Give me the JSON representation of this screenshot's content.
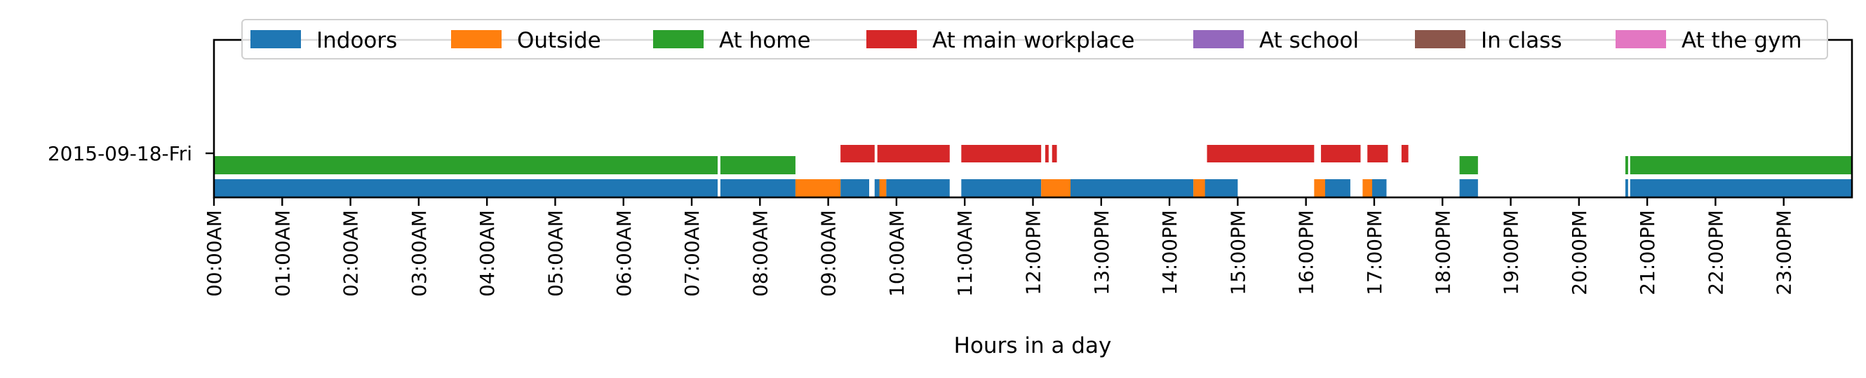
{
  "chart_data": {
    "type": "timeline",
    "xlabel": "Hours in a day",
    "xlim": [
      0,
      24
    ],
    "x_tick_labels": [
      "00:00AM",
      "01:00AM",
      "02:00AM",
      "03:00AM",
      "04:00AM",
      "05:00AM",
      "06:00AM",
      "07:00AM",
      "08:00AM",
      "09:00AM",
      "10:00AM",
      "11:00AM",
      "12:00PM",
      "13:00PM",
      "14:00PM",
      "15:00PM",
      "16:00PM",
      "17:00PM",
      "18:00PM",
      "19:00PM",
      "20:00PM",
      "21:00PM",
      "22:00PM",
      "23:00PM"
    ],
    "y_categories": [
      "2015-09-18-Fri"
    ],
    "legend_position": "top",
    "series": [
      {
        "name": "Indoors",
        "color": "#1f77b4",
        "lane": 0,
        "intervals": [
          [
            0,
            7.38
          ],
          [
            7.42,
            8.52
          ],
          [
            9.18,
            9.6
          ],
          [
            9.68,
            9.8
          ],
          [
            9.85,
            10.78
          ],
          [
            10.95,
            12.12
          ],
          [
            12.52,
            14.35
          ],
          [
            14.5,
            15.0
          ],
          [
            16.22,
            16.65
          ],
          [
            16.9,
            17.18
          ],
          [
            18.25,
            18.52
          ],
          [
            20.68,
            20.72
          ],
          [
            20.75,
            24
          ]
        ]
      },
      {
        "name": "Outside",
        "color": "#ff7f0e",
        "lane": 0,
        "intervals": [
          [
            8.52,
            9.18
          ],
          [
            9.75,
            9.85
          ],
          [
            12.12,
            12.55
          ],
          [
            14.35,
            14.52
          ],
          [
            16.12,
            16.28
          ],
          [
            16.83,
            16.97
          ]
        ]
      },
      {
        "name": "At home",
        "color": "#2ca02c",
        "lane": 1,
        "intervals": [
          [
            0,
            7.38
          ],
          [
            7.42,
            8.52
          ],
          [
            18.25,
            18.52
          ],
          [
            20.68,
            20.72
          ],
          [
            20.75,
            24
          ]
        ]
      },
      {
        "name": "At main workplace",
        "color": "#d62728",
        "lane": 2,
        "intervals": [
          [
            9.18,
            9.68
          ],
          [
            9.72,
            10.78
          ],
          [
            10.95,
            12.12
          ],
          [
            12.18,
            12.23
          ],
          [
            12.28,
            12.35
          ],
          [
            14.55,
            16.12
          ],
          [
            16.22,
            16.8
          ],
          [
            16.9,
            17.2
          ],
          [
            17.4,
            17.5
          ]
        ]
      },
      {
        "name": "At school",
        "color": "#9467bd",
        "lane": 2,
        "intervals": []
      },
      {
        "name": "In class",
        "color": "#8c564b",
        "lane": 2,
        "intervals": []
      },
      {
        "name": "At the gym",
        "color": "#e377c2",
        "lane": 2,
        "intervals": []
      }
    ]
  }
}
